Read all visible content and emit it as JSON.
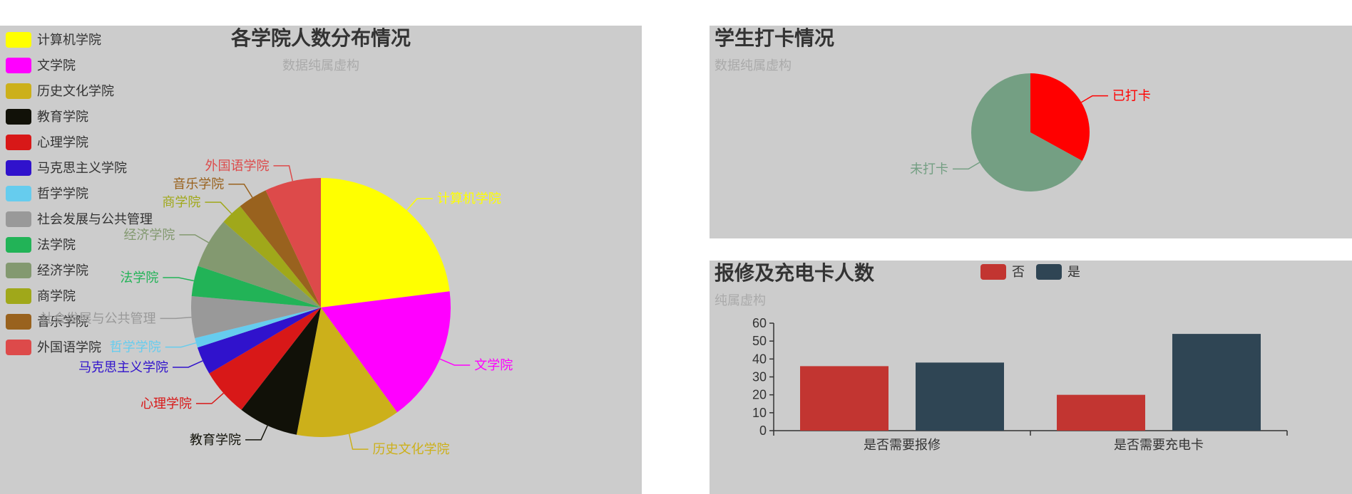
{
  "chart_data": [
    {
      "type": "pie",
      "title": "各学院人数分布情况",
      "subtitle": "数据纯属虚构",
      "legend_position": "left",
      "slices": [
        {
          "name": "计算机学院",
          "value": 23,
          "color": "#ffff00"
        },
        {
          "name": "文学院",
          "value": 17,
          "color": "#ff00ff"
        },
        {
          "name": "历史文化学院",
          "value": 13,
          "color": "#ccb01a"
        },
        {
          "name": "教育学院",
          "value": 7.5,
          "color": "#111108"
        },
        {
          "name": "心理学院",
          "value": 6,
          "color": "#d81818"
        },
        {
          "name": "马克思主义学院",
          "value": 3.5,
          "color": "#3012cc"
        },
        {
          "name": "哲学学院",
          "value": 1.2,
          "color": "#66ccee"
        },
        {
          "name": "社会发展与公共管理",
          "value": 5.2,
          "color": "#999999"
        },
        {
          "name": "法学院",
          "value": 3.8,
          "color": "#22b357"
        },
        {
          "name": "经济学院",
          "value": 6.3,
          "color": "#839970"
        },
        {
          "name": "商学院",
          "value": 2.8,
          "color": "#a0a81a"
        },
        {
          "name": "音乐学院",
          "value": 3.7,
          "color": "#99621e"
        },
        {
          "name": "外国语学院",
          "value": 7,
          "color": "#dd4a4a"
        }
      ]
    },
    {
      "type": "pie",
      "title": "学生打卡情况",
      "subtitle": "数据纯属虚构",
      "slices": [
        {
          "name": "已打卡",
          "value": 33,
          "color": "#ff0000"
        },
        {
          "name": "未打卡",
          "value": 67,
          "color": "#749f83"
        }
      ]
    },
    {
      "type": "bar",
      "title": "报修及充电卡人数",
      "subtitle": "纯属虚构",
      "legend_position": "top",
      "categories": [
        "是否需要报修",
        "是否需要充电卡"
      ],
      "series": [
        {
          "name": "否",
          "values": [
            36,
            20
          ],
          "color": "#c23531"
        },
        {
          "name": "是",
          "values": [
            38,
            54
          ],
          "color": "#2f4554"
        }
      ],
      "ylim": [
        0,
        60
      ],
      "yticks": [
        0,
        10,
        20,
        30,
        40,
        50,
        60
      ]
    }
  ]
}
